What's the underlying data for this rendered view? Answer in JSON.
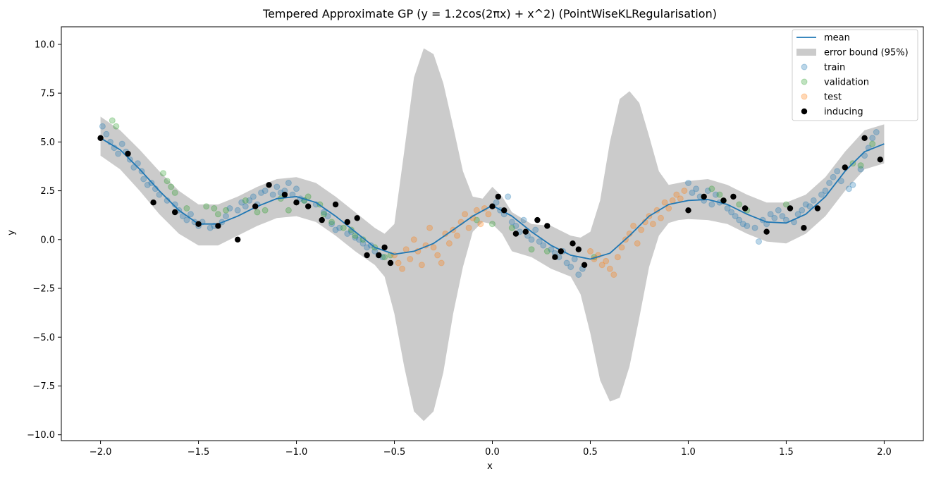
{
  "chart_data": {
    "type": "scatter",
    "title": "Tempered Approximate GP (y = 1.2cos(2πx) + x^2) (PointWiseKLRegularisation)",
    "xlabel": "x",
    "ylabel": "y",
    "xlim": [
      -2.2,
      2.2
    ],
    "ylim": [
      -10.3,
      10.9
    ],
    "xticks": [
      -2.0,
      -1.5,
      -1.0,
      -0.5,
      0.0,
      0.5,
      1.0,
      1.5,
      2.0
    ],
    "xtick_labels": [
      "−2.0",
      "−1.5",
      "−1.0",
      "−0.5",
      "0.0",
      "0.5",
      "1.0",
      "1.5",
      "2.0"
    ],
    "yticks": [
      -10.0,
      -7.5,
      -5.0,
      -2.5,
      0.0,
      2.5,
      5.0,
      7.5,
      10.0
    ],
    "ytick_labels": [
      "−10.0",
      "−7.5",
      "−5.0",
      "−2.5",
      "0.0",
      "2.5",
      "5.0",
      "7.5",
      "10.0"
    ],
    "grid": false,
    "legend_position": "top-right",
    "colors": {
      "mean": "#1f77b4",
      "band": "#cbcbcb",
      "train": "#1f77b4",
      "validation": "#2ca02c",
      "test": "#ff7f0e",
      "inducing": "#000000"
    },
    "legend": [
      {
        "key": "mean",
        "label": "mean"
      },
      {
        "key": "band",
        "label": "error bound (95%)"
      },
      {
        "key": "train",
        "label": "train"
      },
      {
        "key": "validation",
        "label": "validation"
      },
      {
        "key": "test",
        "label": "test"
      },
      {
        "key": "inducing",
        "label": "inducing"
      }
    ],
    "mean": {
      "x": [
        -2.0,
        -1.9,
        -1.8,
        -1.7,
        -1.6,
        -1.5,
        -1.4,
        -1.3,
        -1.2,
        -1.1,
        -1.0,
        -0.9,
        -0.8,
        -0.7,
        -0.6,
        -0.5,
        -0.4,
        -0.3,
        -0.2,
        -0.1,
        0.0,
        0.1,
        0.2,
        0.3,
        0.4,
        0.5,
        0.6,
        0.7,
        0.8,
        0.9,
        1.0,
        1.1,
        1.2,
        1.3,
        1.4,
        1.5,
        1.6,
        1.7,
        1.8,
        1.9,
        2.0
      ],
      "y": [
        5.2,
        4.6,
        3.6,
        2.5,
        1.5,
        0.8,
        0.8,
        1.2,
        1.7,
        2.1,
        2.2,
        1.9,
        1.2,
        0.4,
        -0.4,
        -0.75,
        -0.6,
        -0.2,
        0.5,
        1.2,
        1.75,
        1.2,
        0.4,
        -0.3,
        -0.8,
        -1.0,
        -0.7,
        0.2,
        1.2,
        1.8,
        2.0,
        2.05,
        1.8,
        1.3,
        0.9,
        0.85,
        1.3,
        2.2,
        3.5,
        4.5,
        4.9
      ]
    },
    "error_band": {
      "x": [
        -2.0,
        -1.9,
        -1.8,
        -1.7,
        -1.6,
        -1.5,
        -1.4,
        -1.3,
        -1.2,
        -1.1,
        -1.0,
        -0.9,
        -0.8,
        -0.7,
        -0.6,
        -0.55,
        -0.5,
        -0.45,
        -0.4,
        -0.35,
        -0.3,
        -0.25,
        -0.2,
        -0.15,
        -0.1,
        -0.05,
        0.0,
        0.05,
        0.1,
        0.2,
        0.3,
        0.4,
        0.45,
        0.5,
        0.55,
        0.6,
        0.65,
        0.7,
        0.75,
        0.8,
        0.85,
        0.9,
        0.95,
        1.0,
        1.1,
        1.2,
        1.3,
        1.4,
        1.5,
        1.6,
        1.7,
        1.8,
        1.9,
        2.0
      ],
      "lower": [
        4.3,
        3.6,
        2.5,
        1.3,
        0.3,
        -0.3,
        -0.3,
        0.2,
        0.7,
        1.1,
        1.2,
        0.9,
        0.2,
        -0.6,
        -1.3,
        -1.9,
        -3.8,
        -6.5,
        -8.8,
        -9.3,
        -8.8,
        -6.8,
        -3.8,
        -1.4,
        0.4,
        0.9,
        0.8,
        0.3,
        -0.6,
        -0.9,
        -1.5,
        -1.9,
        -2.8,
        -4.8,
        -7.2,
        -8.3,
        -8.1,
        -6.5,
        -4.0,
        -1.4,
        0.2,
        0.85,
        1.0,
        1.05,
        1.0,
        0.8,
        0.3,
        -0.1,
        -0.2,
        0.3,
        1.2,
        2.5,
        3.6,
        3.9
      ],
      "upper": [
        6.3,
        5.6,
        4.6,
        3.5,
        2.5,
        1.8,
        1.8,
        2.2,
        2.7,
        3.1,
        3.2,
        2.9,
        2.2,
        1.4,
        0.6,
        0.3,
        0.8,
        4.5,
        8.3,
        9.8,
        9.5,
        8.0,
        5.8,
        3.5,
        2.2,
        2.1,
        2.7,
        2.2,
        1.4,
        0.8,
        0.7,
        0.2,
        0.1,
        0.4,
        2.0,
        5.0,
        7.2,
        7.6,
        7.0,
        5.3,
        3.5,
        2.8,
        2.9,
        3.0,
        3.1,
        2.8,
        2.3,
        1.9,
        1.9,
        2.3,
        3.2,
        4.5,
        5.6,
        5.9
      ]
    },
    "train": {
      "x": [
        -1.99,
        -1.97,
        -1.95,
        -1.93,
        -1.91,
        -1.89,
        -1.87,
        -1.85,
        -1.83,
        -1.81,
        -1.79,
        -1.78,
        -1.76,
        -1.74,
        -1.72,
        -1.7,
        -1.66,
        -1.62,
        -1.6,
        -1.58,
        -1.56,
        -1.54,
        -1.52,
        -1.5,
        -1.48,
        -1.44,
        -1.42,
        -1.38,
        -1.36,
        -1.34,
        -1.3,
        -1.28,
        -1.26,
        -1.24,
        -1.22,
        -1.2,
        -1.18,
        -1.16,
        -1.12,
        -1.1,
        -1.08,
        -1.06,
        -1.04,
        -1.02,
        -1.0,
        -0.98,
        -0.96,
        -0.9,
        -0.86,
        -0.84,
        -0.82,
        -0.8,
        -0.78,
        -0.74,
        -0.72,
        -0.7,
        -0.68,
        -0.66,
        -0.64,
        -0.62,
        -0.6,
        -0.58,
        -0.56,
        0.02,
        0.04,
        0.06,
        0.08,
        0.1,
        0.12,
        0.14,
        0.16,
        0.18,
        0.2,
        0.22,
        0.24,
        0.26,
        0.3,
        0.32,
        0.34,
        0.36,
        0.38,
        0.4,
        0.42,
        0.44,
        0.46,
        1.0,
        1.02,
        1.04,
        1.06,
        1.08,
        1.1,
        1.12,
        1.14,
        1.16,
        1.2,
        1.22,
        1.24,
        1.26,
        1.28,
        1.3,
        1.34,
        1.36,
        1.38,
        1.4,
        1.42,
        1.44,
        1.46,
        1.48,
        1.5,
        1.54,
        1.56,
        1.58,
        1.6,
        1.62,
        1.64,
        1.68,
        1.7,
        1.72,
        1.74,
        1.76,
        1.78,
        1.82,
        1.84,
        1.88,
        1.9,
        1.92,
        1.94,
        1.96
      ],
      "y": [
        5.8,
        5.4,
        5.0,
        4.7,
        4.4,
        4.9,
        4.5,
        4.1,
        3.7,
        3.9,
        3.5,
        3.1,
        2.8,
        2.9,
        2.6,
        2.3,
        2.0,
        1.8,
        1.5,
        1.2,
        1.0,
        1.3,
        0.9,
        0.7,
        0.9,
        0.6,
        0.7,
        0.9,
        1.2,
        1.6,
        1.5,
        1.9,
        1.7,
        2.0,
        2.2,
        1.8,
        2.4,
        2.5,
        2.3,
        2.7,
        2.4,
        2.5,
        2.9,
        2.3,
        2.6,
        2.1,
        2.0,
        1.8,
        1.4,
        1.2,
        0.8,
        0.5,
        0.6,
        0.3,
        0.4,
        0.1,
        0.0,
        -0.2,
        -0.4,
        -0.3,
        -0.6,
        -0.8,
        -0.9,
        1.9,
        1.5,
        1.3,
        2.2,
        0.9,
        0.7,
        0.4,
        1.0,
        0.2,
        0.0,
        0.5,
        -0.1,
        -0.3,
        -0.5,
        -0.7,
        -0.9,
        -0.6,
        -1.2,
        -1.4,
        -1.0,
        -1.8,
        -1.5,
        2.9,
        2.4,
        2.6,
        2.2,
        2.0,
        2.5,
        1.8,
        2.3,
        1.9,
        1.6,
        1.4,
        1.2,
        1.0,
        0.8,
        0.7,
        0.6,
        -0.1,
        1.0,
        0.8,
        1.3,
        1.1,
        1.5,
        1.2,
        1.0,
        0.9,
        1.3,
        1.5,
        1.8,
        1.7,
        2.0,
        2.3,
        2.5,
        2.9,
        3.2,
        3.5,
        3.0,
        2.6,
        2.8,
        3.6,
        4.3,
        4.7,
        5.2,
        5.5
      ]
    },
    "validation": {
      "x": [
        -1.94,
        -1.92,
        -1.68,
        -1.66,
        -1.64,
        -1.62,
        -1.56,
        -1.46,
        -1.42,
        -1.4,
        -1.36,
        -1.26,
        -1.2,
        -1.16,
        -1.08,
        -1.04,
        -0.96,
        -0.94,
        -0.88,
        -0.86,
        -0.82,
        -0.76,
        -0.72,
        -0.7,
        -0.66,
        -0.6,
        -0.55,
        -0.52,
        -0.08,
        0.0,
        0.1,
        0.2,
        0.28,
        0.52,
        1.12,
        1.16,
        1.18,
        1.26,
        1.3,
        1.5,
        1.84,
        1.88,
        1.94
      ],
      "y": [
        6.1,
        5.8,
        3.4,
        3.0,
        2.7,
        2.4,
        1.6,
        1.7,
        1.6,
        1.3,
        1.5,
        2.0,
        1.4,
        1.5,
        2.1,
        1.5,
        2.0,
        2.2,
        1.8,
        1.3,
        0.9,
        0.6,
        0.5,
        0.2,
        0.0,
        -0.4,
        -0.9,
        -0.8,
        1.0,
        0.8,
        0.6,
        -0.5,
        -0.6,
        -0.9,
        2.6,
        2.3,
        2.0,
        1.8,
        1.5,
        1.8,
        3.9,
        3.8,
        4.9
      ]
    },
    "test": {
      "x": [
        -0.5,
        -0.48,
        -0.46,
        -0.44,
        -0.42,
        -0.4,
        -0.38,
        -0.36,
        -0.34,
        -0.32,
        -0.3,
        -0.28,
        -0.26,
        -0.24,
        -0.22,
        -0.2,
        -0.18,
        -0.16,
        -0.14,
        -0.12,
        -0.1,
        -0.08,
        -0.06,
        -0.04,
        -0.02,
        0.5,
        0.52,
        0.54,
        0.56,
        0.58,
        0.6,
        0.62,
        0.64,
        0.66,
        0.68,
        0.7,
        0.72,
        0.74,
        0.76,
        0.78,
        0.8,
        0.82,
        0.84,
        0.86,
        0.88,
        0.9,
        0.92,
        0.94,
        0.96,
        0.98
      ],
      "y": [
        -0.8,
        -1.2,
        -1.5,
        -0.5,
        -1.0,
        0.0,
        -0.6,
        -1.3,
        -0.3,
        0.6,
        -0.4,
        -0.8,
        -1.2,
        0.3,
        -0.2,
        0.5,
        0.2,
        0.9,
        1.3,
        0.6,
        1.1,
        1.5,
        0.8,
        1.6,
        1.3,
        -0.6,
        -1.0,
        -0.8,
        -1.3,
        -1.1,
        -1.5,
        -1.8,
        -0.9,
        -0.4,
        0.0,
        0.3,
        0.7,
        -0.2,
        0.5,
        0.9,
        1.2,
        0.8,
        1.5,
        1.1,
        1.9,
        1.6,
        2.0,
        2.3,
        2.1,
        2.5
      ]
    },
    "inducing": {
      "x": [
        -2.0,
        -1.86,
        -1.73,
        -1.62,
        -1.5,
        -1.4,
        -1.3,
        -1.21,
        -1.14,
        -1.06,
        -1.0,
        -0.94,
        -0.87,
        -0.8,
        -0.74,
        -0.69,
        -0.64,
        -0.58,
        -0.55,
        -0.52,
        0.0,
        0.03,
        0.06,
        0.12,
        0.17,
        0.23,
        0.28,
        0.32,
        0.35,
        0.41,
        0.44,
        0.47,
        1.0,
        1.08,
        1.18,
        1.23,
        1.29,
        1.4,
        1.52,
        1.59,
        1.66,
        1.8,
        1.9,
        1.98
      ],
      "y": [
        5.2,
        4.4,
        1.9,
        1.4,
        0.8,
        0.7,
        0.0,
        1.7,
        2.8,
        2.3,
        1.9,
        1.7,
        1.0,
        1.8,
        0.9,
        1.1,
        -0.8,
        -0.8,
        -0.4,
        -1.2,
        1.7,
        2.2,
        1.5,
        0.3,
        0.4,
        1.0,
        0.7,
        -0.9,
        -0.6,
        -0.2,
        -0.5,
        -1.3,
        1.5,
        2.2,
        2.0,
        2.2,
        1.6,
        0.4,
        1.6,
        0.6,
        1.6,
        3.7,
        5.2,
        4.1
      ]
    }
  }
}
